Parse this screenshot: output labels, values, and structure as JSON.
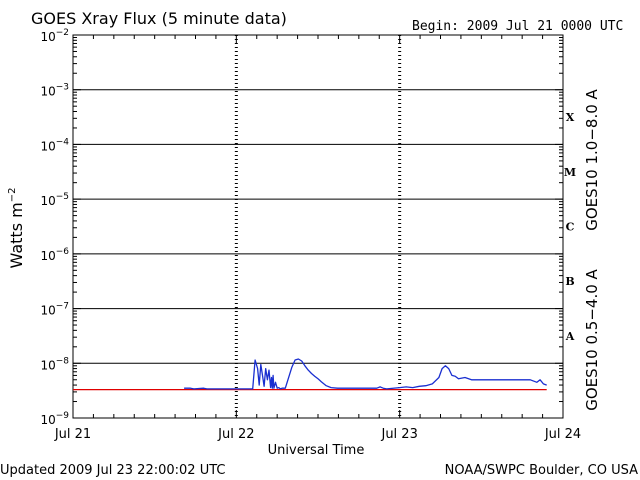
{
  "header": {
    "title": "GOES Xray Flux (5 minute data)",
    "begin": "Begin:  2009 Jul 21 0000 UTC"
  },
  "footer": {
    "updated": "Updated 2009 Jul 23 22:00:02 UTC",
    "credit": "NOAA/SWPC Boulder, CO USA"
  },
  "colors": {
    "long_channel": "#e00000",
    "short_channel": "#1a2fd0",
    "axis": "#000000",
    "background": "#ffffff"
  },
  "chart_data": {
    "type": "line",
    "title": "GOES Xray Flux (5 minute data)",
    "xlabel": "Universal Time",
    "ylabel": "Watts m⁻²",
    "y_scale": "log",
    "ylim": [
      1e-09,
      0.01
    ],
    "xlim_days": [
      0,
      3
    ],
    "x_ticks": [
      {
        "day": 0,
        "label": "Jul 21"
      },
      {
        "day": 1,
        "label": "Jul 22"
      },
      {
        "day": 2,
        "label": "Jul 23"
      },
      {
        "day": 3,
        "label": "Jul 24"
      }
    ],
    "y_ticks": [
      {
        "value": 1e-09,
        "base": "10",
        "exp": "−9"
      },
      {
        "value": 1e-08,
        "base": "10",
        "exp": "−8"
      },
      {
        "value": 1e-07,
        "base": "10",
        "exp": "−7"
      },
      {
        "value": 1e-06,
        "base": "10",
        "exp": "−6"
      },
      {
        "value": 1e-05,
        "base": "10",
        "exp": "−5"
      },
      {
        "value": 0.0001,
        "base": "10",
        "exp": "−4"
      },
      {
        "value": 0.001,
        "base": "10",
        "exp": "−3"
      },
      {
        "value": 0.01,
        "base": "10",
        "exp": "−2"
      }
    ],
    "flare_classes": [
      {
        "label": "X",
        "value": 0.0003162
      },
      {
        "label": "M",
        "value": 3.162e-05
      },
      {
        "label": "C",
        "value": 3.162e-06
      },
      {
        "label": "B",
        "value": 3.162e-07
      },
      {
        "label": "A",
        "value": 3.162e-08
      }
    ],
    "grid": "horizontal at decades, dotted vertical at day boundaries",
    "legend": "right side, vertical",
    "series": [
      {
        "name": "GOES10 1.0−8.0 A",
        "color": "#e00000",
        "x": [
          0.0,
          1.0,
          2.0,
          2.9
        ],
        "y": [
          3.3e-09,
          3.3e-09,
          3.3e-09,
          3.3e-09
        ]
      },
      {
        "name": "GOES10 0.5−4.0 A",
        "color": "#1a2fd0",
        "x": [
          0.68,
          0.72,
          0.74,
          0.8,
          0.82,
          1.1,
          1.115,
          1.13,
          1.14,
          1.15,
          1.16,
          1.17,
          1.18,
          1.19,
          1.2,
          1.21,
          1.215,
          1.22,
          1.225,
          1.23,
          1.24,
          1.25,
          1.26,
          1.27,
          1.28,
          1.29,
          1.3,
          1.34,
          1.36,
          1.38,
          1.4,
          1.42,
          1.44,
          1.46,
          1.48,
          1.5,
          1.52,
          1.55,
          1.58,
          1.62,
          1.7,
          1.8,
          1.86,
          1.88,
          1.9,
          1.92,
          2.0,
          2.04,
          2.08,
          2.12,
          2.16,
          2.2,
          2.24,
          2.26,
          2.28,
          2.3,
          2.32,
          2.34,
          2.36,
          2.4,
          2.44,
          2.5,
          2.6,
          2.7,
          2.8,
          2.84,
          2.86,
          2.88,
          2.9
        ],
        "y": [
          3.5e-09,
          3.5e-09,
          3.4e-09,
          3.5e-09,
          3.4e-09,
          3.4e-09,
          1.15e-08,
          8e-09,
          4e-09,
          9.5e-09,
          6e-09,
          3.8e-09,
          8e-09,
          5e-09,
          7.5e-09,
          3.6e-09,
          5.5e-09,
          3.5e-09,
          6e-09,
          3.5e-09,
          4.5e-09,
          3.5e-09,
          3.6e-09,
          3.4e-09,
          3.5e-09,
          3.5e-09,
          3.5e-09,
          8.5e-09,
          1.15e-08,
          1.2e-08,
          1.1e-08,
          9e-09,
          7.5e-09,
          6.5e-09,
          5.8e-09,
          5.2e-09,
          4.6e-09,
          3.9e-09,
          3.6e-09,
          3.5e-09,
          3.5e-09,
          3.5e-09,
          3.5e-09,
          3.7e-09,
          3.5e-09,
          3.4e-09,
          3.6e-09,
          3.7e-09,
          3.6e-09,
          3.8e-09,
          3.9e-09,
          4.2e-09,
          5.5e-09,
          8e-09,
          9e-09,
          8e-09,
          6e-09,
          5.8e-09,
          5.2e-09,
          5.5e-09,
          5e-09,
          5e-09,
          5e-09,
          5e-09,
          5e-09,
          4.5e-09,
          5e-09,
          4.2e-09,
          4e-09
        ]
      }
    ]
  }
}
